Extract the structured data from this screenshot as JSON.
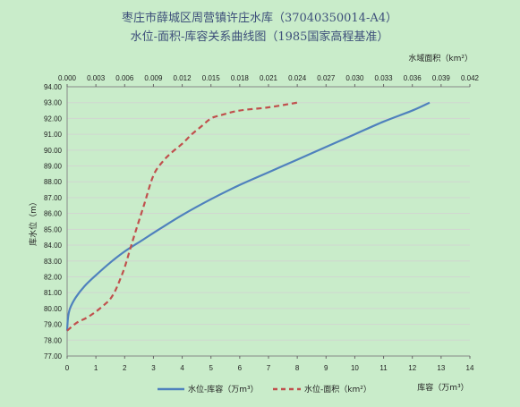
{
  "chart_data": {
    "type": "line",
    "title_line1": "枣庄市薛城区周营镇许庄水库（37040350014-A4）",
    "title_line2": "水位-面积-库容关系曲线图（1985国家高程基准）",
    "ylabel": "库水位（m）",
    "xlabel_bottom": "库容（万m³）",
    "xlabel_top": "水域面积（km²）",
    "ylim": [
      77.0,
      94.0
    ],
    "y_ticks": [
      "77.00",
      "78.00",
      "79.00",
      "80.00",
      "81.00",
      "82.00",
      "83.00",
      "84.00",
      "85.00",
      "86.00",
      "87.00",
      "88.00",
      "89.00",
      "90.00",
      "91.00",
      "92.00",
      "93.00",
      "94.00"
    ],
    "xlim_bottom": [
      0,
      14
    ],
    "x_ticks_bottom": [
      "0",
      "1",
      "2",
      "3",
      "4",
      "5",
      "6",
      "7",
      "8",
      "9",
      "10",
      "11",
      "12",
      "13",
      "14"
    ],
    "xlim_top": [
      0,
      0.042
    ],
    "x_ticks_top": [
      "0.000",
      "0.003",
      "0.006",
      "0.009",
      "0.012",
      "0.015",
      "0.018",
      "0.021",
      "0.024",
      "0.027",
      "0.030",
      "0.033",
      "0.036",
      "0.039",
      "0.042"
    ],
    "grid": true,
    "legend_position": "bottom",
    "series": [
      {
        "name": "水位-库容（万m³）",
        "axis": "bottom",
        "color": "#4f81bd",
        "style": "solid",
        "x": [
          0,
          0.03,
          0.1,
          0.3,
          0.6,
          1.0,
          1.5,
          2.0,
          2.6,
          3.2,
          4.0,
          5.0,
          6.0,
          7.0,
          8.0,
          9.0,
          10.0,
          11.0,
          12.0,
          12.6
        ],
        "y": [
          78.6,
          79.4,
          80.0,
          80.7,
          81.4,
          82.1,
          82.9,
          83.6,
          84.3,
          85.0,
          85.9,
          86.9,
          87.8,
          88.6,
          89.4,
          90.2,
          91.0,
          91.8,
          92.5,
          93.0
        ]
      },
      {
        "name": "水位-面积（km²）",
        "axis": "top",
        "color": "#c0504d",
        "style": "dashed",
        "x": [
          0,
          0.001,
          0.002,
          0.003,
          0.004,
          0.0045,
          0.005,
          0.0055,
          0.006,
          0.0065,
          0.007,
          0.008,
          0.009,
          0.01,
          0.011,
          0.012,
          0.013,
          0.014,
          0.015,
          0.016,
          0.018,
          0.021,
          0.024
        ],
        "y": [
          78.6,
          79.1,
          79.4,
          79.8,
          80.3,
          80.6,
          81.1,
          81.8,
          82.6,
          83.6,
          84.6,
          86.5,
          88.4,
          89.3,
          89.9,
          90.4,
          91.0,
          91.5,
          92.0,
          92.2,
          92.5,
          92.7,
          93.0
        ]
      }
    ]
  }
}
